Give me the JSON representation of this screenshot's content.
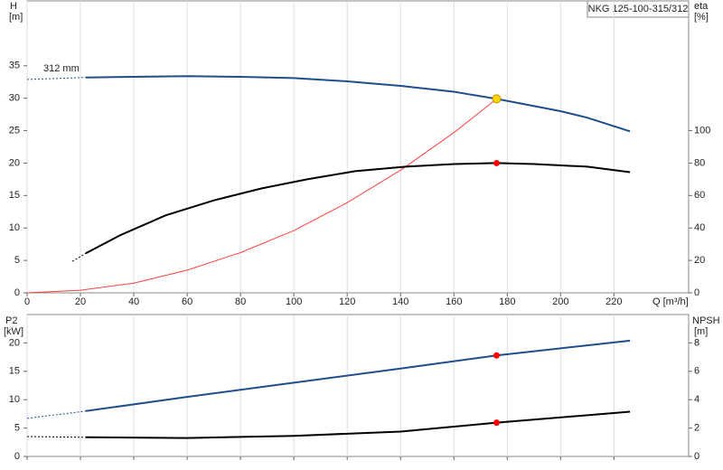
{
  "chart_data": [
    {
      "type": "line",
      "title": "NKG 125-100-315/312",
      "annotation": "312 mm",
      "x_label": "Q [m³/h]",
      "y_label": "H",
      "y_unit": "[m]",
      "y2_label": "eta",
      "y2_unit": "[%]",
      "xlim": [
        0,
        248
      ],
      "xticks": [
        0,
        20,
        40,
        60,
        80,
        100,
        120,
        140,
        160,
        180,
        200,
        220
      ],
      "grid": true,
      "ylim": [
        0,
        45
      ],
      "yticks": [
        0,
        5,
        10,
        15,
        20,
        25,
        30,
        35
      ],
      "y2lim": [
        0,
        180
      ],
      "y2ticks": [
        0,
        20,
        40,
        60,
        80,
        100
      ],
      "series": [
        {
          "color": "#1f4e8c",
          "style": "dashed",
          "x": [
            0,
            22
          ],
          "values": [
            32.9,
            33.2
          ]
        },
        {
          "color": "#1f4e8c",
          "style": "solid",
          "x": [
            22,
            40,
            60,
            80,
            100,
            120,
            140,
            160,
            176,
            200,
            210,
            226
          ],
          "values": [
            33.2,
            33.3,
            33.4,
            33.3,
            33.1,
            32.6,
            31.9,
            31.0,
            29.9,
            28.0,
            27.0,
            24.9
          ]
        },
        {
          "color": "#ff4040",
          "style": "thin",
          "x": [
            0,
            20,
            40,
            60,
            80,
            100,
            120,
            140,
            160,
            176
          ],
          "values": [
            0,
            0.4,
            1.5,
            3.5,
            6.2,
            9.6,
            13.9,
            18.9,
            24.7,
            29.9
          ]
        },
        {
          "color": "#000000",
          "style": "dashed",
          "axis": "y2",
          "x": [
            17,
            22
          ],
          "values": [
            19.4,
            24.4
          ]
        },
        {
          "color": "#000000",
          "style": "solid",
          "axis": "y2",
          "x": [
            22,
            35,
            52,
            70,
            88,
            105,
            123,
            142,
            160,
            176,
            190,
            210,
            226
          ],
          "values": [
            24.4,
            35.6,
            47.8,
            57,
            64.4,
            70,
            75,
            77.8,
            79.4,
            80,
            79.4,
            77.8,
            74.4
          ]
        }
      ],
      "markers": [
        {
          "x": 176,
          "value": 29.9,
          "color": "#ffd700"
        },
        {
          "x": 176,
          "value": 80,
          "color": "#ff0000",
          "axis": "y2"
        }
      ]
    },
    {
      "type": "line",
      "y_label": "P2",
      "y_unit": "[kW]",
      "y2_label": "NPSH",
      "y2_unit": "[m]",
      "xlim": [
        0,
        248
      ],
      "ylim": [
        0,
        25
      ],
      "yticks": [
        0,
        5,
        10,
        15,
        20
      ],
      "y2lim": [
        0,
        10
      ],
      "y2ticks": [
        0,
        2,
        4,
        6,
        8
      ],
      "series": [
        {
          "color": "#1f4e8c",
          "style": "dashed",
          "x": [
            0,
            22
          ],
          "values": [
            6.7,
            8.0
          ]
        },
        {
          "color": "#1f4e8c",
          "style": "solid",
          "x": [
            22,
            60,
            100,
            140,
            176,
            226
          ],
          "values": [
            8.0,
            10.5,
            13.0,
            15.5,
            17.8,
            20.4
          ]
        },
        {
          "color": "#000000",
          "style": "dashed",
          "axis": "y2",
          "x": [
            0,
            22
          ],
          "values": [
            1.4,
            1.35
          ]
        },
        {
          "color": "#000000",
          "style": "solid",
          "axis": "y2",
          "x": [
            22,
            60,
            100,
            140,
            176,
            226
          ],
          "values": [
            1.35,
            1.3,
            1.45,
            1.75,
            2.38,
            3.15
          ]
        }
      ],
      "markers": [
        {
          "x": 176,
          "value": 17.8,
          "color": "#ff0000"
        },
        {
          "x": 176,
          "value": 2.38,
          "color": "#ff0000",
          "axis": "y2"
        }
      ]
    }
  ]
}
